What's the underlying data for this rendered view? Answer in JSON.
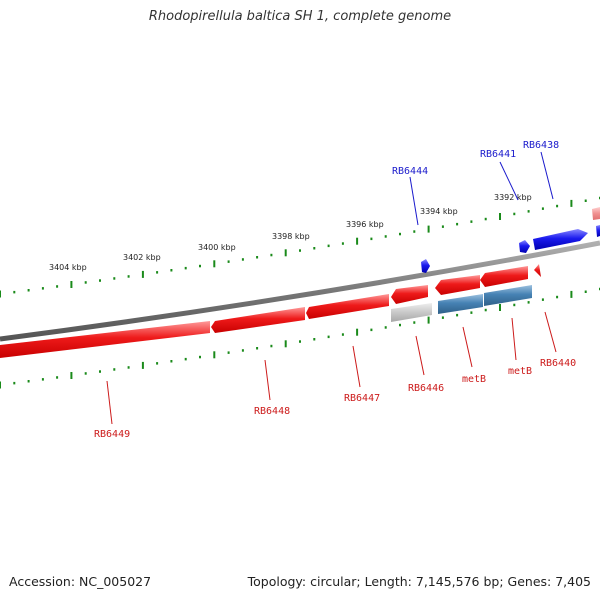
{
  "title": "Rhodopirellula baltica SH 1, complete genome",
  "accession": "Accession: NC_005027",
  "summary": "Topology: circular; Length: 7,145,576 bp; Genes: 7,405",
  "colors": {
    "forward_gene": "#1a1aee",
    "reverse_gene": "#ee1a1a",
    "forward_faded": "#f09090",
    "feature_grey": "#c8c8c8",
    "feature_steelblue": "#4682b4",
    "axis_ticks": "#1a8a1a",
    "backbone": "#7a7a7a"
  },
  "scale_labels": [
    "3404 kbp",
    "3402 kbp",
    "3400 kbp",
    "3398 kbp",
    "3396 kbp",
    "3394 kbp",
    "3392 kbp"
  ],
  "gene_labels": {
    "RB6444": "RB6444",
    "RB6441": "RB6441",
    "RB6438": "RB6438",
    "RB6449": "RB6449",
    "RB6448": "RB6448",
    "RB6447": "RB6447",
    "RB6446": "RB6446",
    "metB_a": "metB",
    "metB_b": "metB",
    "RB6440": "RB6440"
  }
}
